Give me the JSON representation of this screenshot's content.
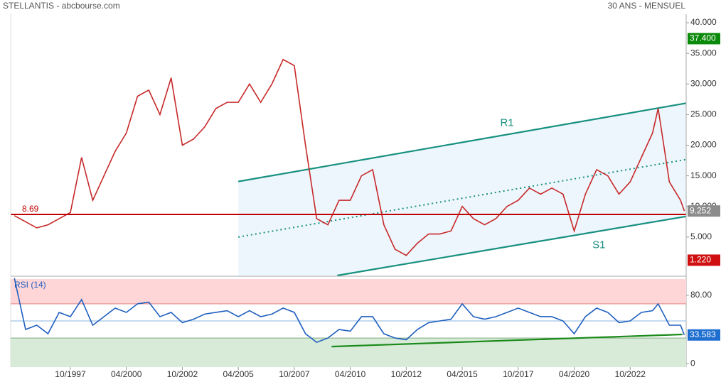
{
  "chart_data": [
    {
      "type": "line",
      "title": "STELLANTIS - abcbourse.com",
      "subtitle": "30 ANS - MENSUEL",
      "x": [
        "04/1995",
        "10/1995",
        "04/1996",
        "10/1996",
        "04/1997",
        "10/1997",
        "04/1998",
        "10/1998",
        "04/1999",
        "10/1999",
        "04/2000",
        "10/2000",
        "04/2001",
        "10/2001",
        "04/2002",
        "10/2002",
        "04/2003",
        "10/2003",
        "04/2004",
        "10/2004",
        "04/2005",
        "10/2005",
        "04/2006",
        "10/2006",
        "04/2007",
        "10/2007",
        "04/2008",
        "10/2008",
        "04/2009",
        "10/2009",
        "04/2010",
        "10/2010",
        "04/2011",
        "10/2011",
        "04/2012",
        "10/2012",
        "04/2013",
        "10/2013",
        "04/2014",
        "10/2014",
        "04/2015",
        "10/2015",
        "04/2016",
        "10/2016",
        "04/2017",
        "10/2017",
        "04/2018",
        "10/2018",
        "04/2019",
        "10/2019",
        "04/2020",
        "10/2020",
        "04/2021",
        "10/2021",
        "04/2022",
        "10/2022",
        "04/2023",
        "10/2023",
        "01/2024",
        "07/2024",
        "01/2025",
        "03/2025"
      ],
      "values": [
        8.5,
        7.5,
        6.5,
        7,
        8,
        9,
        18,
        11,
        15,
        19,
        22,
        28,
        29,
        25,
        31,
        20,
        21,
        23,
        26,
        27,
        27,
        30,
        27,
        30,
        34,
        33,
        20,
        8,
        7,
        11,
        11,
        15,
        16,
        7,
        3,
        2,
        4,
        5.5,
        5.5,
        6,
        10,
        8,
        7,
        8,
        10,
        11,
        13,
        12,
        13,
        12,
        6,
        12,
        16,
        15,
        12,
        14,
        18,
        22,
        26,
        14,
        11,
        9.252
      ],
      "color": "#c62828",
      "xlim": [
        "02/1995",
        "04/2025"
      ],
      "ylim": [
        -1.28,
        41.16
      ],
      "yticks": [
        {
          "value": 5,
          "label": "5.000"
        },
        {
          "value": 10,
          "label": "10.000"
        },
        {
          "value": 15,
          "label": "15.000"
        },
        {
          "value": 20,
          "label": "20.000"
        },
        {
          "value": 25,
          "label": "25.000"
        },
        {
          "value": 30,
          "label": "30.000"
        },
        {
          "value": 35,
          "label": "35.000"
        },
        {
          "value": 40,
          "label": "40.000"
        }
      ],
      "hline": {
        "value": 8.69,
        "label": "8.69",
        "color": "#c00000"
      },
      "channel_color": "#eef6fd",
      "trendlines": [
        {
          "label": "R1",
          "x": [
            "04/2005",
            "04/2025"
          ],
          "values": [
            14.07,
            26.86
          ],
          "color": "#17907f"
        },
        {
          "x": [
            "04/2005",
            "04/2025"
          ],
          "values": [
            5,
            17.67
          ],
          "color": "#17907f",
          "dotted": true
        },
        {
          "label": "S1",
          "x": [
            "09/2009",
            "04/2025"
          ],
          "values": [
            -1.28,
            8.37
          ],
          "color": "#17907f"
        }
      ],
      "price_labels": [
        {
          "value": 37.4,
          "label": "37.400",
          "color": "#0a8a0a"
        },
        {
          "value": 9.252,
          "label": "9.252",
          "color": "#8c8c8c"
        },
        {
          "value": 1.22,
          "label": "1.220",
          "color": "#d01010"
        }
      ]
    },
    {
      "type": "line",
      "title": "RSI (14)",
      "values": [
        100,
        40,
        45,
        35,
        60,
        55,
        75,
        45,
        55,
        65,
        60,
        70,
        72,
        55,
        60,
        48,
        52,
        58,
        60,
        62,
        55,
        62,
        55,
        58,
        65,
        60,
        35,
        25,
        30,
        40,
        38,
        55,
        55,
        35,
        30,
        28,
        40,
        48,
        50,
        52,
        70,
        55,
        52,
        55,
        60,
        65,
        60,
        55,
        55,
        50,
        35,
        55,
        65,
        60,
        48,
        50,
        60,
        62,
        70,
        45,
        45,
        33.583
      ],
      "color": "#1f5fbf",
      "ylim": [
        -4,
        99
      ],
      "yticks": [
        0,
        {
          "value": 80,
          "label": "80.00"
        }
      ],
      "midline": 50,
      "zones": [
        {
          "from": 70,
          "to": 99,
          "color": "#ffd6d8"
        },
        {
          "from": -4,
          "to": 30,
          "color": "#d8ebd8"
        }
      ],
      "trendline": {
        "x": [
          "06/2009",
          "02/2025"
        ],
        "values": [
          20,
          34.2
        ],
        "color": "#1a8a1a"
      },
      "last_label": {
        "value": 33.583,
        "label": "33.583",
        "color": "#1f6fd0"
      },
      "xticks": [
        "10/1997",
        "04/2000",
        "10/2002",
        "04/2005",
        "10/2007",
        "04/2010",
        "10/2012",
        "04/2015",
        "10/2017",
        "04/2020",
        "10/2022"
      ]
    }
  ]
}
